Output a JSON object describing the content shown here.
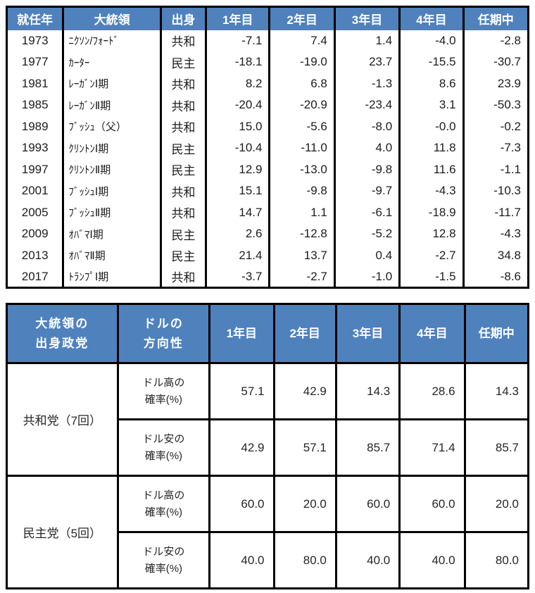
{
  "colors": {
    "header_bg": "#4f81bd",
    "header_text": "#ffffff",
    "negative_value": "#cb3430",
    "value_text": "#1c1c1c",
    "border": "#000000"
  },
  "chart_data": [
    {
      "type": "table",
      "headers": [
        "就任年",
        "大統領",
        "出身",
        "1年目",
        "2年目",
        "3年目",
        "4年目",
        "任期中"
      ],
      "rows": [
        {
          "year": "1973",
          "president": "ﾆｸｿﾝ/ﾌｫｰﾄﾞ",
          "party": "共和",
          "values": [
            "-7.1",
            "7.4",
            "1.4",
            "-4.0",
            "-2.8"
          ]
        },
        {
          "year": "1977",
          "president": "ｶｰﾀｰ",
          "party": "民主",
          "values": [
            "-18.1",
            "-19.0",
            "23.7",
            "-15.5",
            "-30.7"
          ]
        },
        {
          "year": "1981",
          "president": "ﾚｰｶﾞﾝⅠ期",
          "party": "共和",
          "values": [
            "8.2",
            "6.8",
            "-1.3",
            "8.6",
            "23.9"
          ]
        },
        {
          "year": "1985",
          "president": "ﾚｰｶﾞﾝⅡ期",
          "party": "共和",
          "values": [
            "-20.4",
            "-20.9",
            "-23.4",
            "3.1",
            "-50.3"
          ]
        },
        {
          "year": "1989",
          "president": "ﾌﾞｯｼｭ（父）",
          "party": "共和",
          "values": [
            "15.0",
            "-5.6",
            "-8.0",
            "-0.0",
            "-0.2"
          ]
        },
        {
          "year": "1993",
          "president": "ｸﾘﾝﾄﾝⅠ期",
          "party": "民主",
          "values": [
            "-10.4",
            "-11.0",
            "4.0",
            "11.8",
            "-7.3"
          ]
        },
        {
          "year": "1997",
          "president": "ｸﾘﾝﾄﾝⅡ期",
          "party": "民主",
          "values": [
            "12.9",
            "-13.0",
            "-9.8",
            "11.6",
            "-1.1"
          ]
        },
        {
          "year": "2001",
          "president": "ﾌﾞｯｼｭⅠ期",
          "party": "共和",
          "values": [
            "15.1",
            "-9.8",
            "-9.7",
            "-4.3",
            "-10.3"
          ]
        },
        {
          "year": "2005",
          "president": "ﾌﾞｯｼｭⅡ期",
          "party": "共和",
          "values": [
            "14.7",
            "1.1",
            "-6.1",
            "-18.9",
            "-11.7"
          ]
        },
        {
          "year": "2009",
          "president": "ｵﾊﾞﾏⅠ期",
          "party": "民主",
          "values": [
            "2.6",
            "-12.8",
            "-5.2",
            "12.8",
            "-4.3"
          ]
        },
        {
          "year": "2013",
          "president": "ｵﾊﾞﾏⅡ期",
          "party": "民主",
          "values": [
            "21.4",
            "13.7",
            "0.4",
            "-2.7",
            "34.8"
          ]
        },
        {
          "year": "2017",
          "president": "ﾄﾗﾝﾌﾟⅠ期",
          "party": "共和",
          "values": [
            "-3.7",
            "-2.7",
            "-1.0",
            "-1.5",
            "-8.6"
          ]
        }
      ]
    },
    {
      "type": "table",
      "headers": [
        "大統領の\n出身政党",
        "ドルの\n方向性",
        "1年目",
        "2年目",
        "3年目",
        "4年目",
        "任期中"
      ],
      "groups": [
        {
          "party": "共和党（7回）",
          "rows": [
            {
              "label": "ドル高の\n確率(%)",
              "values": [
                "57.1",
                "42.9",
                "14.3",
                "28.6",
                "14.3"
              ]
            },
            {
              "label": "ドル安の\n確率(%)",
              "values": [
                "42.9",
                "57.1",
                "85.7",
                "71.4",
                "85.7"
              ]
            }
          ]
        },
        {
          "party": "民主党（5回）",
          "rows": [
            {
              "label": "ドル高の\n確率(%)",
              "values": [
                "60.0",
                "20.0",
                "60.0",
                "60.0",
                "20.0"
              ]
            },
            {
              "label": "ドル安の\n確率(%)",
              "values": [
                "40.0",
                "80.0",
                "40.0",
                "40.0",
                "80.0"
              ]
            }
          ]
        }
      ]
    }
  ]
}
